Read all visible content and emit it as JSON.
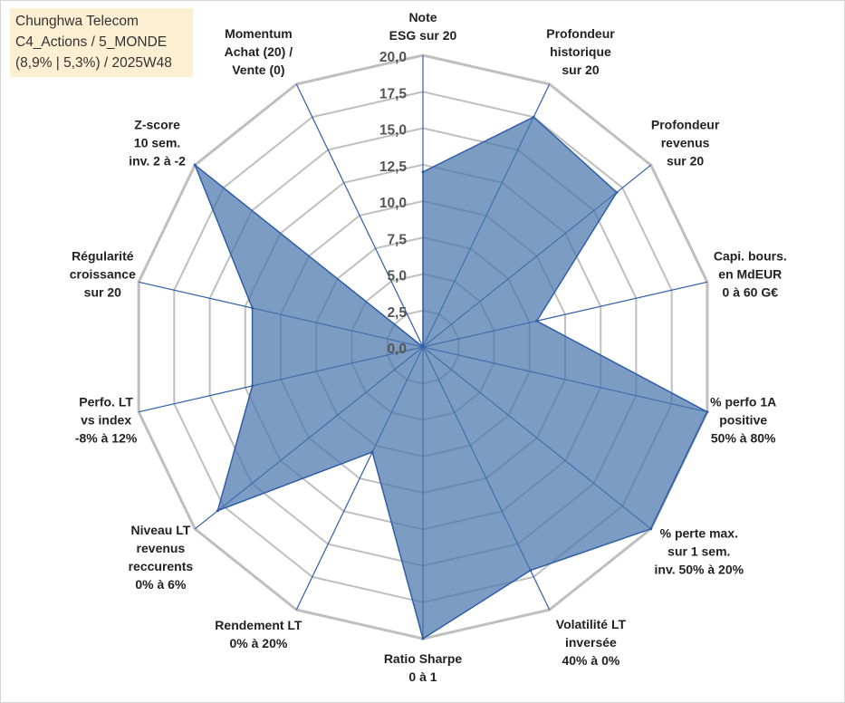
{
  "info": {
    "line1": "Chunghwa Telecom",
    "line2": "C4_Actions / 5_MONDE",
    "line3": "(8,9% | 5,3%) / 2025W48"
  },
  "colors": {
    "fill": "#4a76ad",
    "spoke": "#2f5ea8",
    "grid": "#bfbfbf"
  },
  "chart_data": {
    "type": "radar",
    "title": "Chunghwa Telecom",
    "rmax": 20,
    "ticks": [
      "0,0",
      "2,5",
      "5,0",
      "7,5",
      "10,0",
      "12,5",
      "15,0",
      "17,5",
      "20,0"
    ],
    "axes": [
      {
        "lines": [
          "Note",
          "ESG sur 20"
        ],
        "value": 12
      },
      {
        "lines": [
          "Profondeur",
          "historique",
          "sur 20"
        ],
        "value": 17.5
      },
      {
        "lines": [
          "Profondeur",
          "revenus",
          "sur 20"
        ],
        "value": 17
      },
      {
        "lines": [
          "Capi. bours.",
          "en MdEUR",
          "0 à 60 G€"
        ],
        "value": 8
      },
      {
        "lines": [
          "% perfo 1A",
          "positive",
          "50% à 80%"
        ],
        "value": 20
      },
      {
        "lines": [
          "% perte max.",
          "sur 1 sem.",
          "inv. 50% à 20%"
        ],
        "value": 20
      },
      {
        "lines": [
          "Volatilité LT",
          "inversée",
          "40% à 0%"
        ],
        "value": 17
      },
      {
        "lines": [
          "Ratio Sharpe",
          "0 à 1"
        ],
        "value": 20
      },
      {
        "lines": [
          "Rendement LT",
          "0% à 20%"
        ],
        "value": 8
      },
      {
        "lines": [
          "Niveau LT",
          "revenus",
          "reccurents",
          "0% à 6%"
        ],
        "value": 18
      },
      {
        "lines": [
          "Perfo. LT",
          "vs index",
          "-8% à 12%"
        ],
        "value": 12
      },
      {
        "lines": [
          "Régularité",
          "croissance",
          "sur 20"
        ],
        "value": 12
      },
      {
        "lines": [
          "Z-score",
          "10 sem.",
          "inv. 2 à -2"
        ],
        "value": 20
      },
      {
        "lines": [
          "Momentum",
          "Achat (20) /",
          "Vente (0)"
        ],
        "value": 0
      }
    ]
  }
}
